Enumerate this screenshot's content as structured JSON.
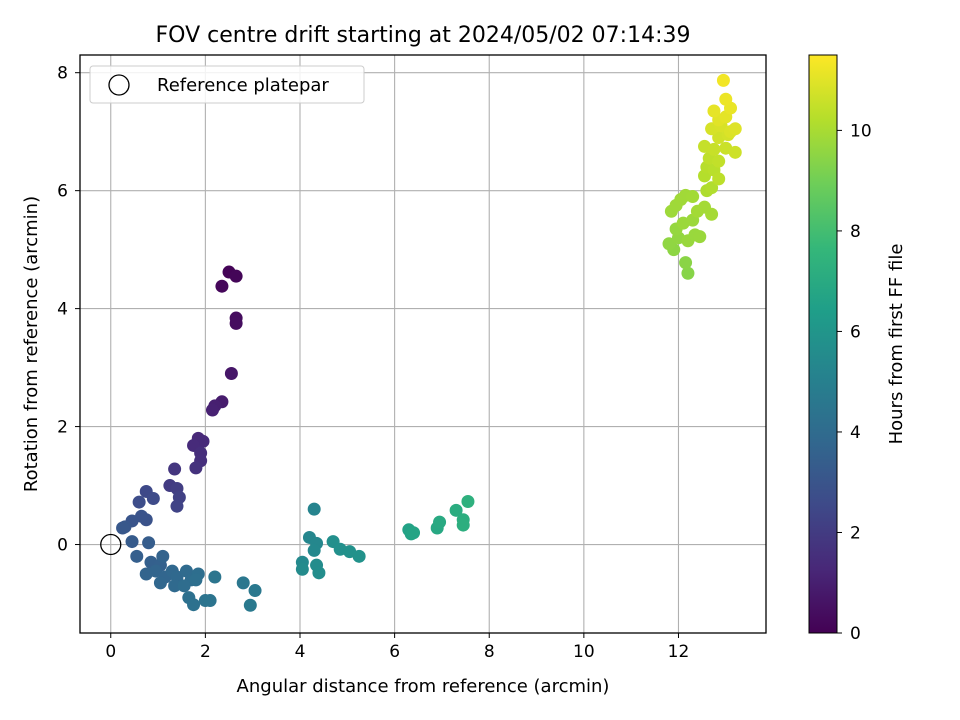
{
  "chart_data": {
    "type": "scatter",
    "title": "FOV centre drift starting at 2024/05/02 07:14:39",
    "xlabel": "Angular distance from reference (arcmin)",
    "ylabel": "Rotation from reference (arcmin)",
    "xlim": [
      -0.65,
      13.85
    ],
    "ylim": [
      -1.5,
      8.3
    ],
    "x_ticks": [
      0,
      2,
      4,
      6,
      8,
      10,
      12
    ],
    "y_ticks": [
      0,
      2,
      4,
      6,
      8
    ],
    "grid": true,
    "legend": {
      "placement": "top-left",
      "entries": [
        "Reference platepar"
      ]
    },
    "reference_point": {
      "x": 0,
      "y": 0,
      "label": "Reference platepar"
    },
    "colorbar": {
      "label": "Hours from first FF file",
      "colormap": "viridis",
      "range": [
        0,
        11.5
      ],
      "ticks": [
        0,
        2,
        4,
        6,
        8,
        10
      ]
    },
    "points": [
      {
        "x": 2.5,
        "y": 4.62,
        "c": 0.1
      },
      {
        "x": 2.65,
        "y": 4.55,
        "c": 0.15
      },
      {
        "x": 2.35,
        "y": 4.38,
        "c": 0.2
      },
      {
        "x": 2.65,
        "y": 3.84,
        "c": 0.35
      },
      {
        "x": 2.65,
        "y": 3.75,
        "c": 0.4
      },
      {
        "x": 2.55,
        "y": 2.9,
        "c": 0.7
      },
      {
        "x": 2.35,
        "y": 2.42,
        "c": 0.9
      },
      {
        "x": 2.2,
        "y": 2.35,
        "c": 1.0
      },
      {
        "x": 2.15,
        "y": 2.28,
        "c": 1.05
      },
      {
        "x": 1.85,
        "y": 1.8,
        "c": 1.3
      },
      {
        "x": 1.95,
        "y": 1.75,
        "c": 1.35
      },
      {
        "x": 1.75,
        "y": 1.68,
        "c": 1.4
      },
      {
        "x": 1.9,
        "y": 1.55,
        "c": 1.5
      },
      {
        "x": 1.9,
        "y": 1.42,
        "c": 1.55
      },
      {
        "x": 1.8,
        "y": 1.3,
        "c": 1.65
      },
      {
        "x": 1.35,
        "y": 1.28,
        "c": 1.8
      },
      {
        "x": 1.25,
        "y": 1.0,
        "c": 2.0
      },
      {
        "x": 1.4,
        "y": 0.95,
        "c": 2.1
      },
      {
        "x": 1.45,
        "y": 0.8,
        "c": 2.2
      },
      {
        "x": 1.4,
        "y": 0.65,
        "c": 2.3
      },
      {
        "x": 0.75,
        "y": 0.9,
        "c": 2.5
      },
      {
        "x": 0.9,
        "y": 0.78,
        "c": 2.6
      },
      {
        "x": 0.6,
        "y": 0.72,
        "c": 2.7
      },
      {
        "x": 0.75,
        "y": 0.42,
        "c": 2.9
      },
      {
        "x": 0.65,
        "y": 0.48,
        "c": 2.95
      },
      {
        "x": 0.45,
        "y": 0.4,
        "c": 3.0
      },
      {
        "x": 0.3,
        "y": 0.3,
        "c": 3.1
      },
      {
        "x": 0.25,
        "y": 0.28,
        "c": 3.15
      },
      {
        "x": 0.45,
        "y": 0.05,
        "c": 3.3
      },
      {
        "x": 0.8,
        "y": 0.03,
        "c": 3.35
      },
      {
        "x": 0.55,
        "y": -0.2,
        "c": 3.45
      },
      {
        "x": 0.85,
        "y": -0.3,
        "c": 3.5
      },
      {
        "x": 1.05,
        "y": -0.35,
        "c": 3.55
      },
      {
        "x": 1.1,
        "y": -0.2,
        "c": 3.6
      },
      {
        "x": 0.75,
        "y": -0.5,
        "c": 3.65
      },
      {
        "x": 0.95,
        "y": -0.45,
        "c": 3.7
      },
      {
        "x": 1.15,
        "y": -0.55,
        "c": 3.75
      },
      {
        "x": 1.05,
        "y": -0.65,
        "c": 3.8
      },
      {
        "x": 1.3,
        "y": -0.45,
        "c": 3.85
      },
      {
        "x": 1.4,
        "y": -0.55,
        "c": 3.9
      },
      {
        "x": 1.35,
        "y": -0.7,
        "c": 3.95
      },
      {
        "x": 1.6,
        "y": -0.45,
        "c": 4.0
      },
      {
        "x": 1.7,
        "y": -0.6,
        "c": 4.05
      },
      {
        "x": 1.55,
        "y": -0.7,
        "c": 4.1
      },
      {
        "x": 1.85,
        "y": -0.5,
        "c": 4.15
      },
      {
        "x": 1.8,
        "y": -0.6,
        "c": 4.2
      },
      {
        "x": 1.65,
        "y": -0.9,
        "c": 4.25
      },
      {
        "x": 1.75,
        "y": -1.02,
        "c": 4.3
      },
      {
        "x": 2.0,
        "y": -0.95,
        "c": 4.35
      },
      {
        "x": 2.1,
        "y": -0.95,
        "c": 4.4
      },
      {
        "x": 2.2,
        "y": -0.55,
        "c": 4.45
      },
      {
        "x": 2.8,
        "y": -0.65,
        "c": 4.55
      },
      {
        "x": 3.05,
        "y": -0.78,
        "c": 4.6
      },
      {
        "x": 2.95,
        "y": -1.03,
        "c": 4.65
      },
      {
        "x": 4.3,
        "y": 0.6,
        "c": 5.2
      },
      {
        "x": 4.2,
        "y": 0.12,
        "c": 5.3
      },
      {
        "x": 4.35,
        "y": 0.02,
        "c": 5.35
      },
      {
        "x": 4.3,
        "y": -0.1,
        "c": 5.4
      },
      {
        "x": 4.05,
        "y": -0.3,
        "c": 5.45
      },
      {
        "x": 4.05,
        "y": -0.42,
        "c": 5.5
      },
      {
        "x": 4.35,
        "y": -0.35,
        "c": 5.55
      },
      {
        "x": 4.4,
        "y": -0.48,
        "c": 5.6
      },
      {
        "x": 4.7,
        "y": 0.05,
        "c": 5.7
      },
      {
        "x": 4.85,
        "y": -0.08,
        "c": 5.75
      },
      {
        "x": 5.05,
        "y": -0.12,
        "c": 5.8
      },
      {
        "x": 5.25,
        "y": -0.2,
        "c": 5.85
      },
      {
        "x": 6.3,
        "y": 0.25,
        "c": 6.6
      },
      {
        "x": 6.35,
        "y": 0.18,
        "c": 6.65
      },
      {
        "x": 6.4,
        "y": 0.2,
        "c": 6.7
      },
      {
        "x": 6.9,
        "y": 0.28,
        "c": 6.9
      },
      {
        "x": 6.95,
        "y": 0.38,
        "c": 6.95
      },
      {
        "x": 7.3,
        "y": 0.58,
        "c": 7.1
      },
      {
        "x": 7.45,
        "y": 0.42,
        "c": 7.15
      },
      {
        "x": 7.45,
        "y": 0.33,
        "c": 7.2
      },
      {
        "x": 7.55,
        "y": 0.73,
        "c": 7.3
      },
      {
        "x": 12.2,
        "y": 4.6,
        "c": 9.4
      },
      {
        "x": 12.15,
        "y": 4.78,
        "c": 9.45
      },
      {
        "x": 11.9,
        "y": 5.0,
        "c": 9.5
      },
      {
        "x": 11.8,
        "y": 5.1,
        "c": 9.55
      },
      {
        "x": 12.0,
        "y": 5.2,
        "c": 9.6
      },
      {
        "x": 11.95,
        "y": 5.35,
        "c": 9.65
      },
      {
        "x": 12.2,
        "y": 5.15,
        "c": 9.7
      },
      {
        "x": 12.35,
        "y": 5.25,
        "c": 9.72
      },
      {
        "x": 12.45,
        "y": 5.22,
        "c": 9.74
      },
      {
        "x": 12.1,
        "y": 5.45,
        "c": 9.76
      },
      {
        "x": 12.3,
        "y": 5.5,
        "c": 9.78
      },
      {
        "x": 11.85,
        "y": 5.65,
        "c": 9.8
      },
      {
        "x": 11.95,
        "y": 5.75,
        "c": 9.82
      },
      {
        "x": 12.05,
        "y": 5.85,
        "c": 9.84
      },
      {
        "x": 12.15,
        "y": 5.92,
        "c": 9.86
      },
      {
        "x": 12.3,
        "y": 5.9,
        "c": 9.88
      },
      {
        "x": 12.4,
        "y": 5.65,
        "c": 9.9
      },
      {
        "x": 12.55,
        "y": 5.72,
        "c": 9.92
      },
      {
        "x": 12.7,
        "y": 5.6,
        "c": 9.94
      },
      {
        "x": 12.6,
        "y": 6.0,
        "c": 10.1
      },
      {
        "x": 12.7,
        "y": 6.05,
        "c": 10.15
      },
      {
        "x": 12.55,
        "y": 6.25,
        "c": 10.2
      },
      {
        "x": 12.6,
        "y": 6.4,
        "c": 10.25
      },
      {
        "x": 12.75,
        "y": 6.35,
        "c": 10.3
      },
      {
        "x": 12.85,
        "y": 6.2,
        "c": 10.35
      },
      {
        "x": 12.65,
        "y": 6.55,
        "c": 10.4
      },
      {
        "x": 12.85,
        "y": 6.5,
        "c": 10.45
      },
      {
        "x": 12.55,
        "y": 6.75,
        "c": 10.5
      },
      {
        "x": 12.75,
        "y": 6.7,
        "c": 10.55
      },
      {
        "x": 13.0,
        "y": 6.72,
        "c": 10.6
      },
      {
        "x": 13.2,
        "y": 6.65,
        "c": 10.65
      },
      {
        "x": 12.85,
        "y": 6.9,
        "c": 10.7
      },
      {
        "x": 13.05,
        "y": 6.95,
        "c": 10.75
      },
      {
        "x": 12.7,
        "y": 7.05,
        "c": 10.8
      },
      {
        "x": 12.9,
        "y": 7.1,
        "c": 10.85
      },
      {
        "x": 13.1,
        "y": 7.0,
        "c": 10.9
      },
      {
        "x": 13.2,
        "y": 7.05,
        "c": 10.95
      },
      {
        "x": 12.85,
        "y": 7.2,
        "c": 11.0
      },
      {
        "x": 13.0,
        "y": 7.25,
        "c": 11.05
      },
      {
        "x": 12.75,
        "y": 7.35,
        "c": 11.1
      },
      {
        "x": 13.1,
        "y": 7.4,
        "c": 11.15
      },
      {
        "x": 13.0,
        "y": 7.55,
        "c": 11.2
      },
      {
        "x": 12.95,
        "y": 7.87,
        "c": 11.3
      }
    ]
  }
}
